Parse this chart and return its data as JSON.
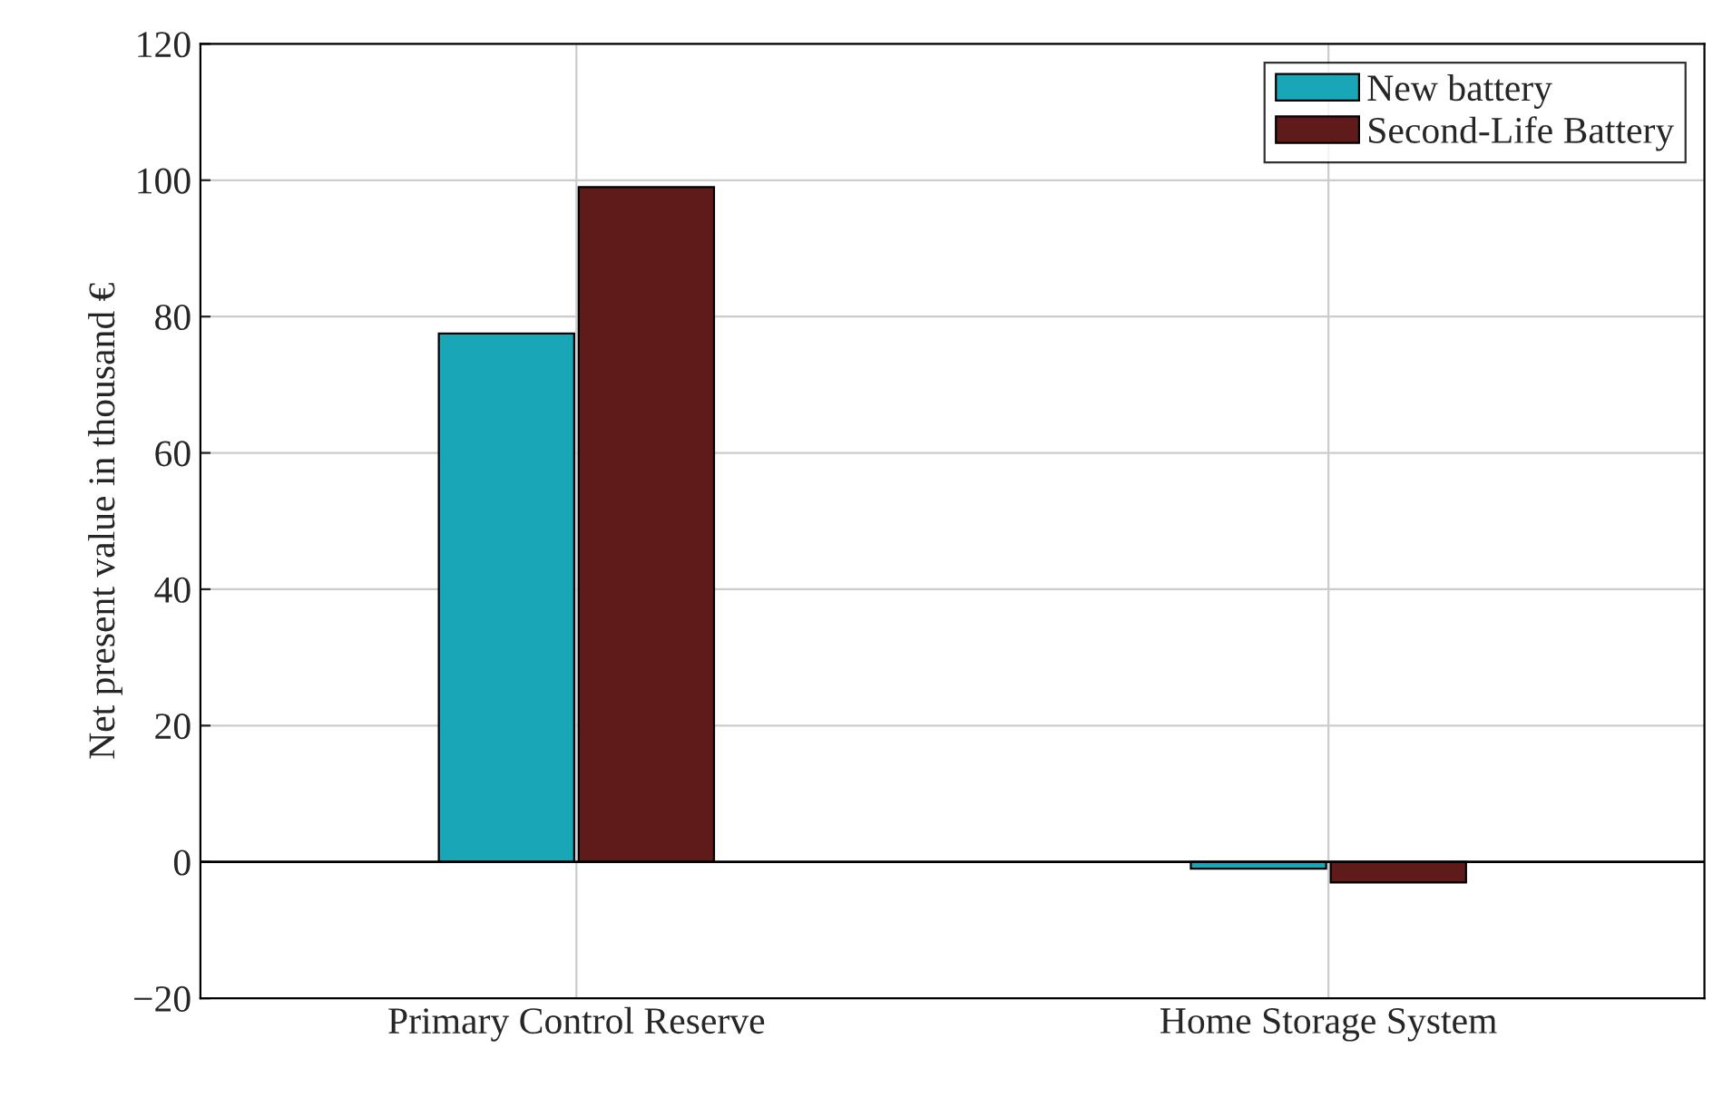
{
  "chart_data": {
    "type": "bar",
    "ylabel": "Net present value in thousand €",
    "categories": [
      "Primary Control Reserve",
      "Home Storage System"
    ],
    "series": [
      {
        "name": "New battery",
        "color": "#19a7b7",
        "values": [
          77.5,
          -1
        ]
      },
      {
        "name": "Second-Life Battery",
        "color": "#5e1b19",
        "values": [
          99,
          -3
        ]
      }
    ],
    "ylim": [
      -20,
      120
    ],
    "yticks": [
      {
        "value": -20,
        "label": "−20"
      },
      0,
      20,
      40,
      60,
      80,
      100,
      120
    ],
    "ref_lines": [
      {
        "axis": "y",
        "value": 0,
        "color": "#000000"
      }
    ],
    "grid": true,
    "legend": "top right"
  }
}
